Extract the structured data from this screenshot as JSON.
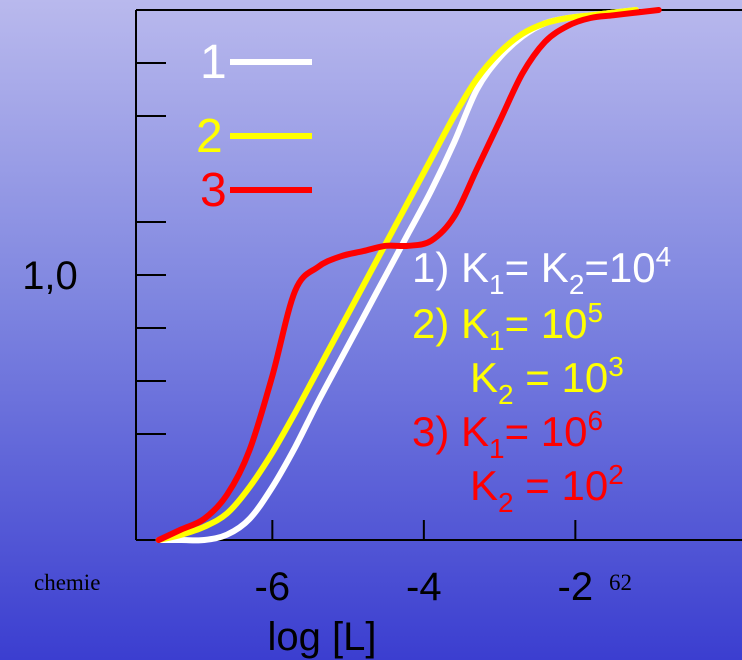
{
  "footer": {
    "left_text": "chemie",
    "page_number": "62"
  },
  "chart_data": {
    "type": "line",
    "xlabel": "log [L]",
    "ylabel": "",
    "x_tick_labels": [
      "-6",
      "-4",
      "-2"
    ],
    "x_ticks": [
      -6,
      -4,
      -2
    ],
    "xlim": [
      -7.8,
      0.2
    ],
    "ylim": [
      0,
      2.0
    ],
    "y_tick_label": "1,0",
    "y_tick_label_value": 1.0,
    "y_ticks": [
      0.4,
      0.6,
      0.8,
      1.2,
      1.6,
      1.8
    ],
    "colors": {
      "1": "#ffffff",
      "2": "#ffff00",
      "3": "#ff0000"
    },
    "legend": [
      {
        "label": "1",
        "color": "#ffffff"
      },
      {
        "label": "2",
        "color": "#ffff00"
      },
      {
        "label": "3",
        "color": "#ff0000"
      }
    ],
    "annotations": [
      {
        "color": "#ffffff",
        "parts": [
          "1) K",
          "1",
          "= K",
          "2",
          "=10",
          "4"
        ]
      },
      {
        "color": "#ffff00",
        "parts": [
          "2) K",
          "1",
          "= 10",
          "5"
        ]
      },
      {
        "color": "#ffff00",
        "parts": [
          "K",
          "2",
          " = 10",
          "3"
        ]
      },
      {
        "color": "#ff0000",
        "parts": [
          "3) K",
          "1",
          "= 10",
          "6"
        ]
      },
      {
        "color": "#ff0000",
        "parts": [
          "K",
          "2",
          " = 10",
          "2"
        ]
      }
    ],
    "series": [
      {
        "color": "#ffffff",
        "x": [
          -7.5,
          -7.2,
          -6.9,
          -6.6,
          -6.3,
          -6.0,
          -5.7,
          -5.4,
          -5.1,
          -4.8,
          -4.5,
          -4.2,
          -3.9,
          -3.6,
          -3.3,
          -3.0,
          -2.7,
          -2.4,
          -2.1,
          -1.8,
          -1.5,
          -1.2
        ],
        "y": [
          0.0,
          0.0,
          0.0,
          0.02,
          0.08,
          0.2,
          0.35,
          0.52,
          0.68,
          0.84,
          1.0,
          1.16,
          1.32,
          1.5,
          1.7,
          1.82,
          1.9,
          1.95,
          1.97,
          1.98,
          1.99,
          2.0
        ]
      },
      {
        "color": "#ffff00",
        "x": [
          -7.5,
          -7.2,
          -6.9,
          -6.6,
          -6.3,
          -6.0,
          -5.7,
          -5.4,
          -5.1,
          -4.8,
          -4.5,
          -4.2,
          -3.9,
          -3.6,
          -3.3,
          -3.0,
          -2.7,
          -2.4,
          -2.1,
          -1.8,
          -1.5,
          -1.2
        ],
        "y": [
          0.0,
          0.02,
          0.05,
          0.1,
          0.2,
          0.33,
          0.48,
          0.64,
          0.8,
          0.96,
          1.12,
          1.28,
          1.44,
          1.6,
          1.74,
          1.84,
          1.91,
          1.95,
          1.97,
          1.98,
          1.99,
          2.0
        ]
      },
      {
        "color": "#ff0000",
        "x": [
          -7.5,
          -7.2,
          -6.9,
          -6.6,
          -6.3,
          -6.0,
          -5.7,
          -5.4,
          -5.1,
          -4.8,
          -4.5,
          -4.2,
          -3.9,
          -3.6,
          -3.3,
          -3.0,
          -2.7,
          -2.4,
          -2.1,
          -1.8,
          -1.5,
          -1.2,
          -0.9
        ],
        "y": [
          0.0,
          0.04,
          0.08,
          0.17,
          0.34,
          0.62,
          0.94,
          1.03,
          1.07,
          1.09,
          1.11,
          1.11,
          1.13,
          1.22,
          1.4,
          1.58,
          1.76,
          1.88,
          1.94,
          1.97,
          1.98,
          1.99,
          2.0
        ]
      }
    ]
  }
}
